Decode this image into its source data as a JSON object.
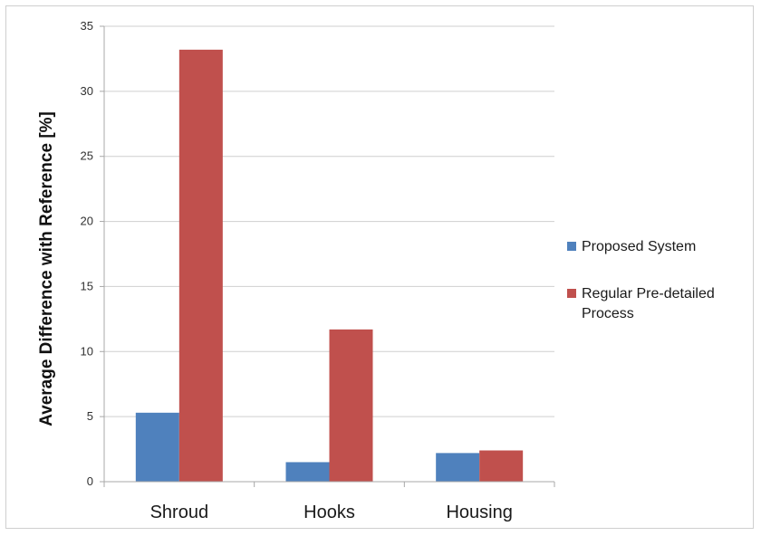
{
  "chart_data": {
    "type": "bar",
    "title": "",
    "xlabel": "",
    "ylabel": "Average Difference with Reference [%]",
    "categories": [
      "Shroud",
      "Hooks",
      "Housing"
    ],
    "series": [
      {
        "name": "Proposed System",
        "values": [
          5.3,
          1.5,
          2.2
        ],
        "color": "#4f81bd"
      },
      {
        "name": "Regular Pre-detailed Process",
        "values": [
          33.2,
          11.7,
          2.4
        ],
        "color": "#c0504d"
      }
    ],
    "ylim": [
      0,
      35
    ],
    "yticks": [
      0,
      5,
      10,
      15,
      20,
      25,
      30,
      35
    ],
    "grid": true,
    "legend_position": "right"
  },
  "legend": {
    "items": [
      {
        "lines": [
          "Proposed System"
        ]
      },
      {
        "lines": [
          "Regular Pre-detailed",
          "Process"
        ]
      }
    ]
  }
}
